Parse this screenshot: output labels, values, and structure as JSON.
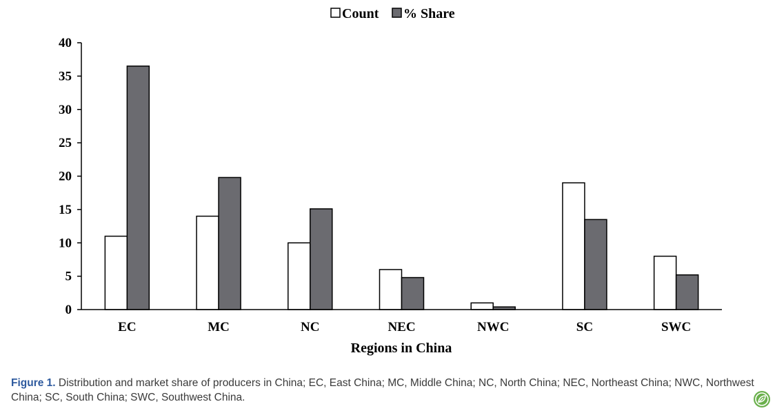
{
  "chart_data": {
    "type": "bar",
    "categories": [
      "EC",
      "MC",
      "NC",
      "NEC",
      "NWC",
      "SC",
      "SWC"
    ],
    "series": [
      {
        "name": "Count",
        "values": [
          11,
          14,
          10,
          6,
          1,
          19,
          8
        ],
        "color": "#ffffff"
      },
      {
        "name": "% Share",
        "values": [
          36.5,
          19.8,
          15.1,
          4.8,
          0.4,
          13.5,
          5.2
        ],
        "color": "#6b6b70"
      }
    ],
    "xlabel": "Regions in China",
    "ylabel": "",
    "ylim": [
      0,
      40
    ],
    "yticks": [
      0,
      5,
      10,
      15,
      20,
      25,
      30,
      35,
      40
    ],
    "grid": false,
    "legend_position": "top-center"
  },
  "caption": {
    "label": "Figure 1.",
    "text": " Distribution and market share of producers in China; EC, East China; MC, Middle China; NC, North China; NEC, Northeast China; NWC, Northwest China; SC, South China; SWC, Southwest China."
  },
  "logo_icon": "leaf-logo-icon",
  "logo_color": "#6ab04c"
}
